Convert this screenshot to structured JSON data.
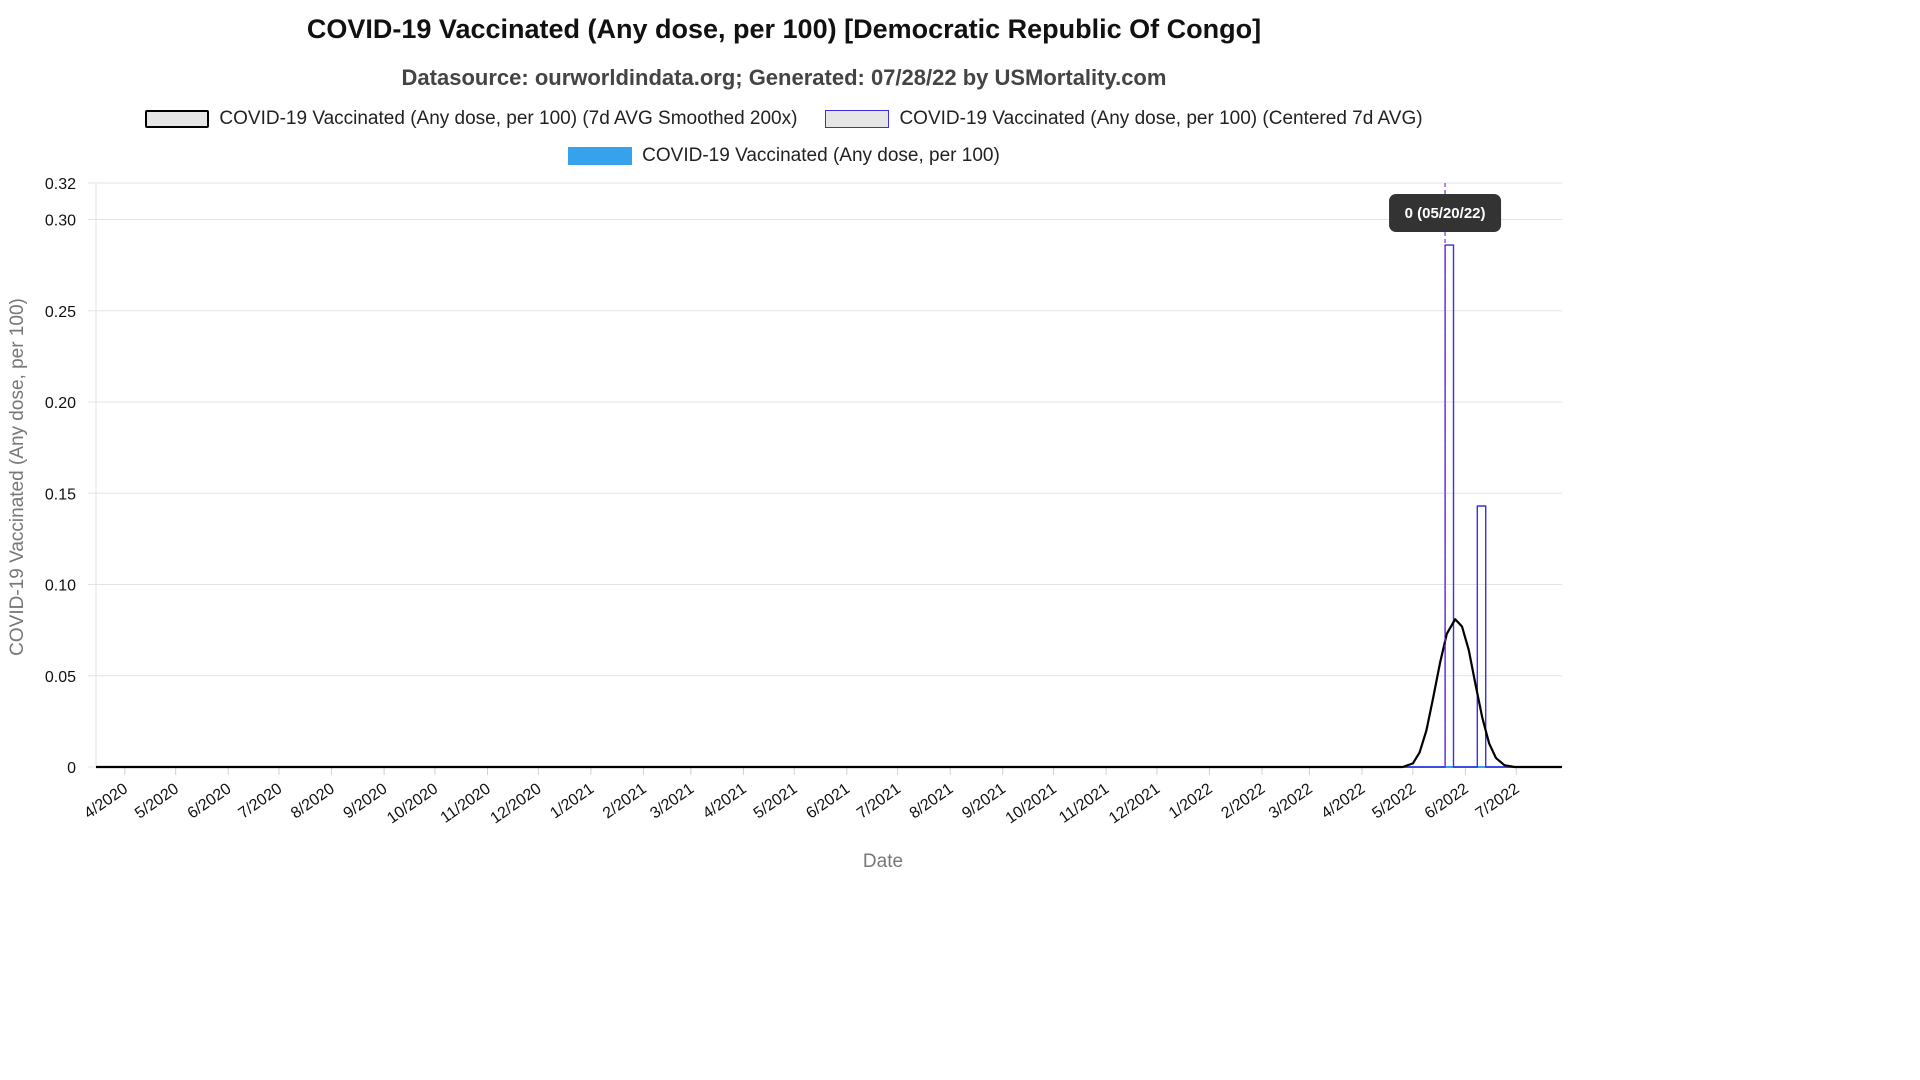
{
  "title": "COVID-19 Vaccinated (Any dose, per 100) [Democratic Republic Of Congo]",
  "subtitle": "Datasource: ourworldindata.org; Generated: 07/28/22 by USMortality.com",
  "colors": {
    "smoothed": "#000000",
    "centered": "#3b2fe0",
    "raw": "#36a2eb",
    "grid": "#e3e3e3",
    "crosshair": "#8a2be2",
    "tooltip_bg": "#333333"
  },
  "tooltip": {
    "label": "0 (05/20/22)",
    "date": "2022-05-20"
  },
  "chart_data": {
    "type": "line",
    "title": "COVID-19 Vaccinated (Any dose, per 100) [Democratic Republic Of Congo]",
    "subtitle": "Datasource: ourworldindata.org; Generated: 07/28/22 by USMortality.com",
    "xlabel": "Date",
    "ylabel": "COVID-19 Vaccinated (Any dose, per 100)",
    "xlim": [
      "2020-03-15",
      "2022-07-28"
    ],
    "ylim": [
      0,
      0.32
    ],
    "yticks": [
      {
        "value": 0,
        "label": "0"
      },
      {
        "value": 0.05,
        "label": "0.05"
      },
      {
        "value": 0.1,
        "label": "0.10"
      },
      {
        "value": 0.15,
        "label": "0.15"
      },
      {
        "value": 0.2,
        "label": "0.20"
      },
      {
        "value": 0.25,
        "label": "0.25"
      },
      {
        "value": 0.3,
        "label": "0.30"
      },
      {
        "value": 0.32,
        "label": "0.32"
      }
    ],
    "xticks": [
      {
        "date": "2020-04-01",
        "label": "4/2020"
      },
      {
        "date": "2020-05-01",
        "label": "5/2020"
      },
      {
        "date": "2020-06-01",
        "label": "6/2020"
      },
      {
        "date": "2020-07-01",
        "label": "7/2020"
      },
      {
        "date": "2020-08-01",
        "label": "8/2020"
      },
      {
        "date": "2020-09-01",
        "label": "9/2020"
      },
      {
        "date": "2020-10-01",
        "label": "10/2020"
      },
      {
        "date": "2020-11-01",
        "label": "11/2020"
      },
      {
        "date": "2020-12-01",
        "label": "12/2020"
      },
      {
        "date": "2021-01-01",
        "label": "1/2021"
      },
      {
        "date": "2021-02-01",
        "label": "2/2021"
      },
      {
        "date": "2021-03-01",
        "label": "3/2021"
      },
      {
        "date": "2021-04-01",
        "label": "4/2021"
      },
      {
        "date": "2021-05-01",
        "label": "5/2021"
      },
      {
        "date": "2021-06-01",
        "label": "6/2021"
      },
      {
        "date": "2021-07-01",
        "label": "7/2021"
      },
      {
        "date": "2021-08-01",
        "label": "8/2021"
      },
      {
        "date": "2021-09-01",
        "label": "9/2021"
      },
      {
        "date": "2021-10-01",
        "label": "10/2021"
      },
      {
        "date": "2021-11-01",
        "label": "11/2021"
      },
      {
        "date": "2021-12-01",
        "label": "12/2021"
      },
      {
        "date": "2022-01-01",
        "label": "1/2022"
      },
      {
        "date": "2022-02-01",
        "label": "2/2022"
      },
      {
        "date": "2022-03-01",
        "label": "3/2022"
      },
      {
        "date": "2022-04-01",
        "label": "4/2022"
      },
      {
        "date": "2022-05-01",
        "label": "5/2022"
      },
      {
        "date": "2022-06-01",
        "label": "6/2022"
      },
      {
        "date": "2022-07-01",
        "label": "7/2022"
      }
    ],
    "grid": true,
    "legend_position": "top",
    "series": [
      {
        "name": "COVID-19 Vaccinated (Any dose, per 100) (7d AVG Smoothed 200x)",
        "style": "line",
        "color": "#000000",
        "points": [
          {
            "x": "2020-03-15",
            "y": 0
          },
          {
            "x": "2022-04-25",
            "y": 0
          },
          {
            "x": "2022-05-01",
            "y": 0.002
          },
          {
            "x": "2022-05-05",
            "y": 0.008
          },
          {
            "x": "2022-05-09",
            "y": 0.02
          },
          {
            "x": "2022-05-13",
            "y": 0.038
          },
          {
            "x": "2022-05-17",
            "y": 0.057
          },
          {
            "x": "2022-05-21",
            "y": 0.073
          },
          {
            "x": "2022-05-26",
            "y": 0.081
          },
          {
            "x": "2022-05-30",
            "y": 0.077
          },
          {
            "x": "2022-06-03",
            "y": 0.064
          },
          {
            "x": "2022-06-07",
            "y": 0.045
          },
          {
            "x": "2022-06-11",
            "y": 0.027
          },
          {
            "x": "2022-06-15",
            "y": 0.013
          },
          {
            "x": "2022-06-19",
            "y": 0.005
          },
          {
            "x": "2022-06-24",
            "y": 0.001
          },
          {
            "x": "2022-06-30",
            "y": 0
          },
          {
            "x": "2022-07-28",
            "y": 0
          }
        ]
      },
      {
        "name": "COVID-19 Vaccinated (Any dose, per 100) (Centered 7d AVG)",
        "style": "step",
        "color": "#3b2fe0",
        "points": [
          {
            "x": "2020-03-15",
            "y": 0
          },
          {
            "x": "2022-05-20",
            "y": 0
          },
          {
            "x": "2022-05-20",
            "y": 0.286
          },
          {
            "x": "2022-05-25",
            "y": 0.286
          },
          {
            "x": "2022-05-25",
            "y": 0
          },
          {
            "x": "2022-06-08",
            "y": 0
          },
          {
            "x": "2022-06-08",
            "y": 0.143
          },
          {
            "x": "2022-06-13",
            "y": 0.143
          },
          {
            "x": "2022-06-13",
            "y": 0
          },
          {
            "x": "2022-07-28",
            "y": 0
          }
        ]
      },
      {
        "name": "COVID-19 Vaccinated (Any dose, per 100)",
        "style": "line",
        "color": "#36a2eb",
        "points": [
          {
            "x": "2020-03-15",
            "y": 0
          },
          {
            "x": "2022-07-28",
            "y": 0
          }
        ]
      }
    ]
  }
}
